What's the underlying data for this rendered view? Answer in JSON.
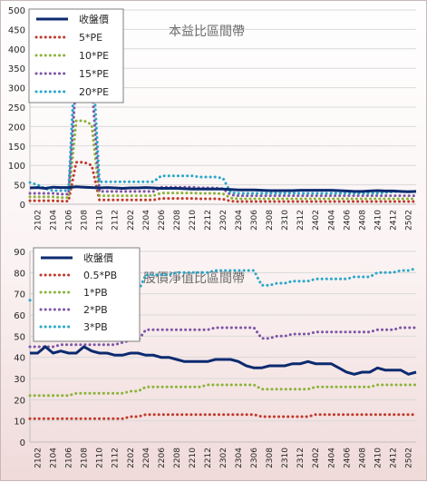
{
  "chart_data": [
    {
      "type": "line",
      "title": "本益比區間帶",
      "xlabel": "",
      "ylabel": "",
      "ylim": [
        0,
        500
      ],
      "yticks": [
        0,
        50,
        100,
        150,
        200,
        250,
        300,
        350,
        400,
        450,
        500
      ],
      "grid": "horizontal",
      "legend": "top-left",
      "x": [
        "2101",
        "2102",
        "2103",
        "2104",
        "2105",
        "2106",
        "2107",
        "2108",
        "2109",
        "2110",
        "2111",
        "2112",
        "2201",
        "2202",
        "2203",
        "2204",
        "2205",
        "2206",
        "2207",
        "2208",
        "2209",
        "2210",
        "2211",
        "2212",
        "2301",
        "2302",
        "2303",
        "2304",
        "2305",
        "2306",
        "2307",
        "2308",
        "2309",
        "2310",
        "2311",
        "2312",
        "2401",
        "2402",
        "2403",
        "2404",
        "2405",
        "2406",
        "2407",
        "2408",
        "2409",
        "2410",
        "2411",
        "2412",
        "2501",
        "2502",
        "2503"
      ],
      "xtick_labels": [
        "2102",
        "2104",
        "2106",
        "2108",
        "2110",
        "2112",
        "2202",
        "2204",
        "2206",
        "2208",
        "2210",
        "2212",
        "2302",
        "2304",
        "2306",
        "2308",
        "2310",
        "2312",
        "2402",
        "2404",
        "2406",
        "2408",
        "2410",
        "2412",
        "2502"
      ],
      "series": [
        {
          "name": "收盤價",
          "color": "#0b2a6f",
          "style": "solid",
          "values": [
            42,
            43,
            41,
            44,
            43,
            43,
            45,
            44,
            43,
            42,
            43,
            42,
            41,
            42,
            42,
            43,
            42,
            41,
            41,
            41,
            40,
            39,
            39,
            39,
            39,
            39,
            38,
            37,
            37,
            37,
            36,
            35,
            35,
            35,
            35,
            36,
            36,
            36,
            36,
            36,
            35,
            34,
            33,
            33,
            34,
            35,
            34,
            34,
            33,
            32,
            33
          ]
        },
        {
          "name": "5*PE",
          "color": "#c0392b",
          "style": "dotted",
          "values": [
            9,
            9,
            9,
            9,
            8,
            8,
            108,
            108,
            100,
            11,
            11,
            11,
            11,
            11,
            11,
            11,
            11,
            15,
            15,
            15,
            15,
            15,
            14,
            14,
            14,
            13,
            8,
            7,
            7,
            7,
            7,
            7,
            7,
            7,
            7,
            7,
            7,
            7,
            7,
            7,
            7,
            7,
            7,
            7,
            7,
            7,
            7,
            7,
            7,
            7,
            7
          ]
        },
        {
          "name": "10*PE",
          "color": "#8db33a",
          "style": "dotted",
          "values": [
            19,
            19,
            19,
            19,
            17,
            17,
            215,
            215,
            205,
            22,
            22,
            22,
            22,
            22,
            22,
            22,
            22,
            29,
            29,
            29,
            29,
            29,
            28,
            28,
            28,
            27,
            16,
            14,
            14,
            14,
            14,
            14,
            14,
            14,
            14,
            14,
            14,
            14,
            14,
            14,
            14,
            14,
            14,
            14,
            14,
            14,
            14,
            14,
            14,
            14,
            14
          ]
        },
        {
          "name": "15*PE",
          "color": "#7e55a6",
          "style": "dotted",
          "values": [
            28,
            28,
            28,
            28,
            26,
            26,
            323,
            323,
            310,
            33,
            33,
            33,
            33,
            33,
            33,
            33,
            33,
            44,
            44,
            44,
            44,
            44,
            42,
            42,
            42,
            40,
            24,
            22,
            22,
            22,
            22,
            22,
            22,
            22,
            22,
            22,
            22,
            22,
            22,
            22,
            22,
            22,
            22,
            22,
            22,
            22,
            22,
            22,
            22,
            22,
            22
          ]
        },
        {
          "name": "20*PE",
          "color": "#2aa7c8",
          "style": "dotted",
          "values": [
            56,
            50,
            40,
            35,
            35,
            35,
            430,
            430,
            413,
            58,
            58,
            58,
            58,
            58,
            58,
            58,
            58,
            73,
            73,
            73,
            73,
            73,
            70,
            70,
            70,
            67,
            30,
            28,
            28,
            28,
            28,
            28,
            28,
            28,
            28,
            28,
            28,
            28,
            28,
            28,
            28,
            28,
            28,
            28,
            28,
            28,
            30,
            32,
            33,
            33,
            33
          ]
        }
      ]
    },
    {
      "type": "line",
      "title": "股價淨值比區間帶",
      "xlabel": "",
      "ylabel": "",
      "ylim": [
        0,
        90
      ],
      "yticks": [
        0,
        10,
        20,
        30,
        40,
        50,
        60,
        70,
        80,
        90
      ],
      "grid": "horizontal",
      "legend": "top-left",
      "x": [
        "2101",
        "2102",
        "2103",
        "2104",
        "2105",
        "2106",
        "2107",
        "2108",
        "2109",
        "2110",
        "2111",
        "2112",
        "2201",
        "2202",
        "2203",
        "2204",
        "2205",
        "2206",
        "2207",
        "2208",
        "2209",
        "2210",
        "2211",
        "2212",
        "2301",
        "2302",
        "2303",
        "2304",
        "2305",
        "2306",
        "2307",
        "2308",
        "2309",
        "2310",
        "2311",
        "2312",
        "2401",
        "2402",
        "2403",
        "2404",
        "2405",
        "2406",
        "2407",
        "2408",
        "2409",
        "2410",
        "2411",
        "2412",
        "2501",
        "2502",
        "2503"
      ],
      "xtick_labels": [
        "2102",
        "2104",
        "2106",
        "2108",
        "2110",
        "2112",
        "2202",
        "2204",
        "2206",
        "2208",
        "2210",
        "2212",
        "2302",
        "2304",
        "2306",
        "2308",
        "2310",
        "2312",
        "2402",
        "2404",
        "2406",
        "2408",
        "2410",
        "2412",
        "2502"
      ],
      "series": [
        {
          "name": "收盤價",
          "color": "#0b2a6f",
          "style": "solid",
          "values": [
            42,
            42,
            45,
            42,
            43,
            42,
            42,
            45,
            43,
            42,
            42,
            41,
            41,
            42,
            42,
            41,
            41,
            40,
            40,
            39,
            38,
            38,
            38,
            38,
            39,
            39,
            39,
            38,
            36,
            35,
            35,
            36,
            36,
            36,
            37,
            37,
            38,
            37,
            37,
            37,
            35,
            33,
            32,
            33,
            33,
            35,
            34,
            34,
            34,
            32,
            33
          ]
        },
        {
          "name": "0.5*PB",
          "color": "#c0392b",
          "style": "dotted",
          "values": [
            11,
            11,
            11,
            11,
            11,
            11,
            11,
            11,
            11,
            11,
            11,
            11,
            11,
            12,
            12,
            13,
            13,
            13,
            13,
            13,
            13,
            13,
            13,
            13,
            13,
            13,
            13,
            13,
            13,
            13,
            12,
            12,
            12,
            12,
            12,
            12,
            12,
            13,
            13,
            13,
            13,
            13,
            13,
            13,
            13,
            13,
            13,
            13,
            13,
            13,
            13
          ]
        },
        {
          "name": "1*PB",
          "color": "#8db33a",
          "style": "dotted",
          "values": [
            22,
            22,
            22,
            22,
            22,
            22,
            23,
            23,
            23,
            23,
            23,
            23,
            23,
            24,
            24,
            26,
            26,
            26,
            26,
            26,
            26,
            26,
            26,
            27,
            27,
            27,
            27,
            27,
            27,
            27,
            25,
            25,
            25,
            25,
            25,
            25,
            25,
            26,
            26,
            26,
            26,
            26,
            26,
            26,
            26,
            27,
            27,
            27,
            27,
            27,
            27
          ]
        },
        {
          "name": "2*PB",
          "color": "#7e55a6",
          "style": "dotted",
          "values": [
            45,
            45,
            45,
            45,
            46,
            46,
            46,
            46,
            46,
            46,
            46,
            46,
            47,
            48,
            48,
            53,
            53,
            53,
            53,
            53,
            53,
            53,
            53,
            53,
            54,
            54,
            54,
            54,
            54,
            54,
            49,
            49,
            50,
            50,
            51,
            51,
            51,
            52,
            52,
            52,
            52,
            52,
            52,
            52,
            52,
            53,
            53,
            53,
            54,
            54,
            54
          ]
        },
        {
          "name": "3*PB",
          "color": "#2aa7c8",
          "style": "dotted",
          "values": [
            67,
            67,
            67,
            68,
            68,
            68,
            69,
            69,
            69,
            69,
            69,
            69,
            70,
            71,
            71,
            79,
            79,
            79,
            79,
            80,
            80,
            80,
            80,
            80,
            81,
            81,
            81,
            81,
            81,
            81,
            74,
            74,
            75,
            75,
            76,
            76,
            76,
            77,
            77,
            77,
            77,
            77,
            78,
            78,
            78,
            80,
            80,
            80,
            81,
            81,
            82
          ]
        }
      ]
    }
  ]
}
